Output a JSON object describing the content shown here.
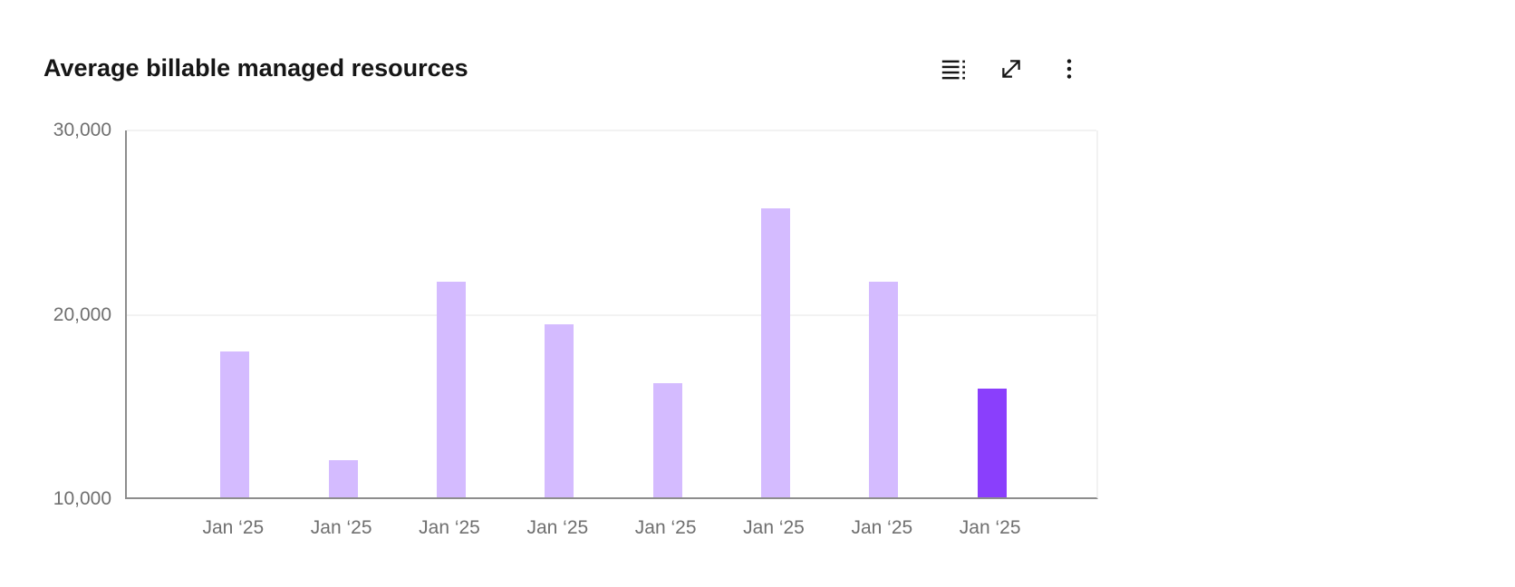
{
  "header": {
    "title": "Average billable managed resources",
    "toolbar": {
      "show_data_table": "Show data table",
      "expand": "Expand",
      "options": "Options"
    }
  },
  "colors": {
    "title_text": "#161616",
    "icon": "#161616",
    "axis_line": "#8d8d8d",
    "gridline": "#f2f2f2",
    "tick_text": "#6f6f6f",
    "bar_default": "#d4bbff",
    "bar_highlight": "#8a3ffc"
  },
  "chart_data": {
    "type": "bar",
    "title": "Average billable managed resources",
    "categories": [
      "Jan ‘25",
      "Jan ‘25",
      "Jan ‘25",
      "Jan ‘25",
      "Jan ‘25",
      "Jan ‘25",
      "Jan ‘25",
      "Jan ‘25"
    ],
    "values": [
      17900,
      12000,
      21700,
      19400,
      16200,
      25700,
      21700,
      15900
    ],
    "bar_colors": [
      "#d4bbff",
      "#d4bbff",
      "#d4bbff",
      "#d4bbff",
      "#d4bbff",
      "#d4bbff",
      "#d4bbff",
      "#8a3ffc"
    ],
    "xlabel": "",
    "ylabel": "",
    "ylim": [
      10000,
      30000
    ],
    "yticks": [
      10000,
      20000,
      30000
    ],
    "ytick_labels": [
      "10,000",
      "20,000",
      "30,000"
    ],
    "grid": "horizontal-only",
    "legend": "none"
  }
}
